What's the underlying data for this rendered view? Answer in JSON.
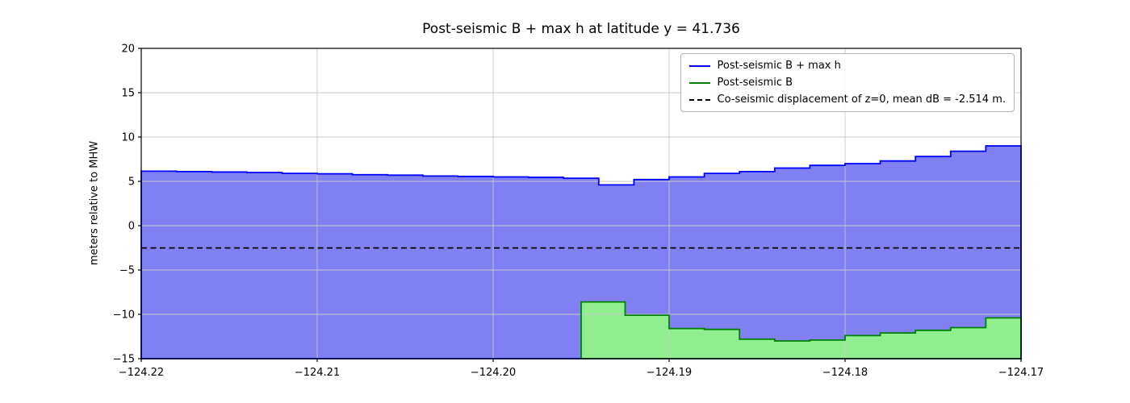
{
  "chart_data": {
    "type": "area",
    "title": "Post-seismic B + max h at latitude y = 41.736",
    "xlabel": "",
    "ylabel": "meters relative to MHW",
    "xlim": [
      -124.22,
      -124.17
    ],
    "ylim": [
      -15,
      20
    ],
    "grid": true,
    "xticks": {
      "values": [
        -124.22,
        -124.21,
        -124.2,
        -124.19,
        -124.18,
        -124.17
      ],
      "labels": [
        "−124.22",
        "−124.21",
        "−124.20",
        "−124.19",
        "−124.18",
        "−124.17"
      ]
    },
    "yticks": {
      "values": [
        -15,
        -10,
        -5,
        0,
        5,
        10,
        15,
        20
      ],
      "labels": [
        "−15",
        "−10",
        "−5",
        "0",
        "5",
        "10",
        "15",
        "20"
      ]
    },
    "coseismic_line": {
      "y": -2.514,
      "color": "#000000",
      "style": "dashed"
    },
    "legend": {
      "position": "upper right",
      "entries": [
        {
          "label": "Post-seismic B + max h",
          "color": "#0000ff",
          "dash": false
        },
        {
          "label": "Post-seismic B",
          "color": "#008000",
          "dash": false
        },
        {
          "label": "Co-seismic displacement of z=0, mean dB = -2.514 m.",
          "color": "#000000",
          "dash": true
        }
      ]
    },
    "series": [
      {
        "name": "Post-seismic B + max h",
        "type": "step-area",
        "edge_color": "#0000ff",
        "fill_color": "#8080f2",
        "baseline": -15,
        "x_edges": [
          -124.22,
          -124.218,
          -124.216,
          -124.214,
          -124.212,
          -124.21,
          -124.208,
          -124.206,
          -124.204,
          -124.202,
          -124.2,
          -124.198,
          -124.196,
          -124.194,
          -124.192,
          -124.19,
          -124.188,
          -124.186,
          -124.184,
          -124.182,
          -124.18,
          -124.178,
          -124.176,
          -124.174,
          -124.172,
          -124.17
        ],
        "values": [
          6.15,
          6.1,
          6.05,
          6.0,
          5.9,
          5.85,
          5.75,
          5.7,
          5.6,
          5.55,
          5.5,
          5.45,
          5.35,
          4.6,
          5.2,
          5.5,
          5.9,
          6.1,
          6.5,
          6.8,
          7.0,
          7.3,
          7.8,
          8.4,
          9.0
        ]
      },
      {
        "name": "Post-seismic B",
        "type": "step-area",
        "edge_color": "#008000",
        "fill_color": "#90ee90",
        "baseline": -15,
        "x_edges": [
          -124.195,
          -124.1925,
          -124.19,
          -124.188,
          -124.186,
          -124.184,
          -124.182,
          -124.18,
          -124.178,
          -124.176,
          -124.174,
          -124.172,
          -124.17
        ],
        "values": [
          -8.6,
          -10.1,
          -11.6,
          -11.7,
          -12.8,
          -13.0,
          -12.9,
          -12.4,
          -12.1,
          -11.8,
          -11.5,
          -10.4
        ]
      }
    ]
  }
}
